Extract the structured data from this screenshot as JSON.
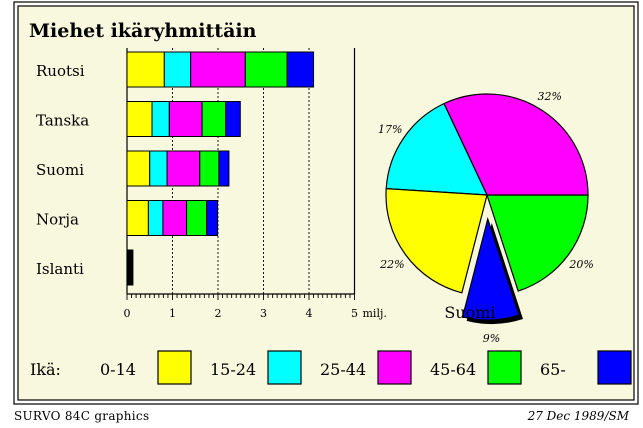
{
  "chart_data": [
    {
      "type": "bar",
      "stacked": true,
      "orientation": "horizontal",
      "title": "Miehet ikäryhmittäin",
      "categories": [
        "Ruotsi",
        "Tanska",
        "Suomi",
        "Norja",
        "Islanti"
      ],
      "series": [
        {
          "name": "0-14",
          "color": "#ffff00",
          "values": [
            0.82,
            0.55,
            0.5,
            0.47,
            0.03
          ]
        },
        {
          "name": "15-24",
          "color": "#00ffff",
          "values": [
            0.58,
            0.38,
            0.38,
            0.32,
            0.02
          ]
        },
        {
          "name": "25-44",
          "color": "#ff00ff",
          "values": [
            1.2,
            0.72,
            0.72,
            0.52,
            0.04
          ]
        },
        {
          "name": "45-64",
          "color": "#00ff00",
          "values": [
            0.92,
            0.52,
            0.42,
            0.44,
            0.02
          ]
        },
        {
          "name": "65-",
          "color": "#0000ff",
          "values": [
            0.58,
            0.32,
            0.22,
            0.24,
            0.02
          ]
        }
      ],
      "xaxis": {
        "min": 0,
        "max": 5,
        "ticks": [
          "0",
          "1",
          "2",
          "3",
          "4",
          "5"
        ],
        "unit": "milj."
      },
      "gridlines": [
        1,
        2,
        3,
        4
      ],
      "grid": "vertical-dashed",
      "legend": {
        "title": "Ikä:",
        "placement": "bottom"
      }
    },
    {
      "type": "pie",
      "title": "Suomi",
      "slices": [
        {
          "name": "0-14",
          "value": 20,
          "label": "20%",
          "color": "#00ff00"
        },
        {
          "name": "15-24",
          "value": 32,
          "label": "32%",
          "color": "#ff00ff"
        },
        {
          "name": "25-44",
          "value": 17,
          "label": "17%",
          "color": "#00ffff"
        },
        {
          "name": "45-64",
          "value": 22,
          "label": "22%",
          "color": "#ffff00"
        },
        {
          "name": "65-",
          "value": 9,
          "label": "9%",
          "color": "#0000ff",
          "exploded": true
        }
      ]
    }
  ],
  "footer": {
    "left": "SURVO 84C graphics",
    "right": "27 Dec 1989/SM"
  }
}
